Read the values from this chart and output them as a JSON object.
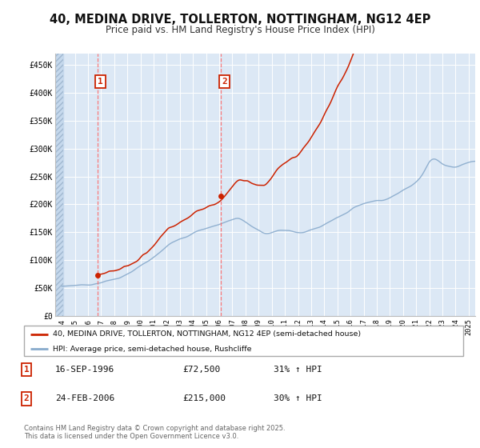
{
  "title": "40, MEDINA DRIVE, TOLLERTON, NOTTINGHAM, NG12 4EP",
  "subtitle": "Price paid vs. HM Land Registry's House Price Index (HPI)",
  "title_fontsize": 10.5,
  "subtitle_fontsize": 8.5,
  "background_color": "#ffffff",
  "plot_bg_color": "#dce8f5",
  "grid_color": "#ffffff",
  "ylim": [
    0,
    470000
  ],
  "xlim_start": 1993.5,
  "xlim_end": 2025.5,
  "yticks": [
    0,
    50000,
    100000,
    150000,
    200000,
    250000,
    300000,
    350000,
    400000,
    450000
  ],
  "ytick_labels": [
    "£0",
    "£50K",
    "£100K",
    "£150K",
    "£200K",
    "£250K",
    "£300K",
    "£350K",
    "£400K",
    "£450K"
  ],
  "xticks": [
    1994,
    1995,
    1996,
    1997,
    1998,
    1999,
    2000,
    2001,
    2002,
    2003,
    2004,
    2005,
    2006,
    2007,
    2008,
    2009,
    2010,
    2011,
    2012,
    2013,
    2014,
    2015,
    2016,
    2017,
    2018,
    2019,
    2020,
    2021,
    2022,
    2023,
    2024,
    2025
  ],
  "sale1_x": 1996.71,
  "sale1_y": 72500,
  "sale1_label": "1",
  "sale1_date": "16-SEP-1996",
  "sale1_price": "£72,500",
  "sale1_hpi": "31% ↑ HPI",
  "sale2_x": 2006.14,
  "sale2_y": 215000,
  "sale2_label": "2",
  "sale2_date": "24-FEB-2006",
  "sale2_price": "£215,000",
  "sale2_hpi": "30% ↑ HPI",
  "red_line_color": "#cc2200",
  "blue_line_color": "#88aacc",
  "vline_color": "#ff6666",
  "marker_box_color": "#cc2200",
  "legend_line1": "40, MEDINA DRIVE, TOLLERTON, NOTTINGHAM, NG12 4EP (semi-detached house)",
  "legend_line2": "HPI: Average price, semi-detached house, Rushcliffe",
  "footnote": "Contains HM Land Registry data © Crown copyright and database right 2025.\nThis data is licensed under the Open Government Licence v3.0."
}
